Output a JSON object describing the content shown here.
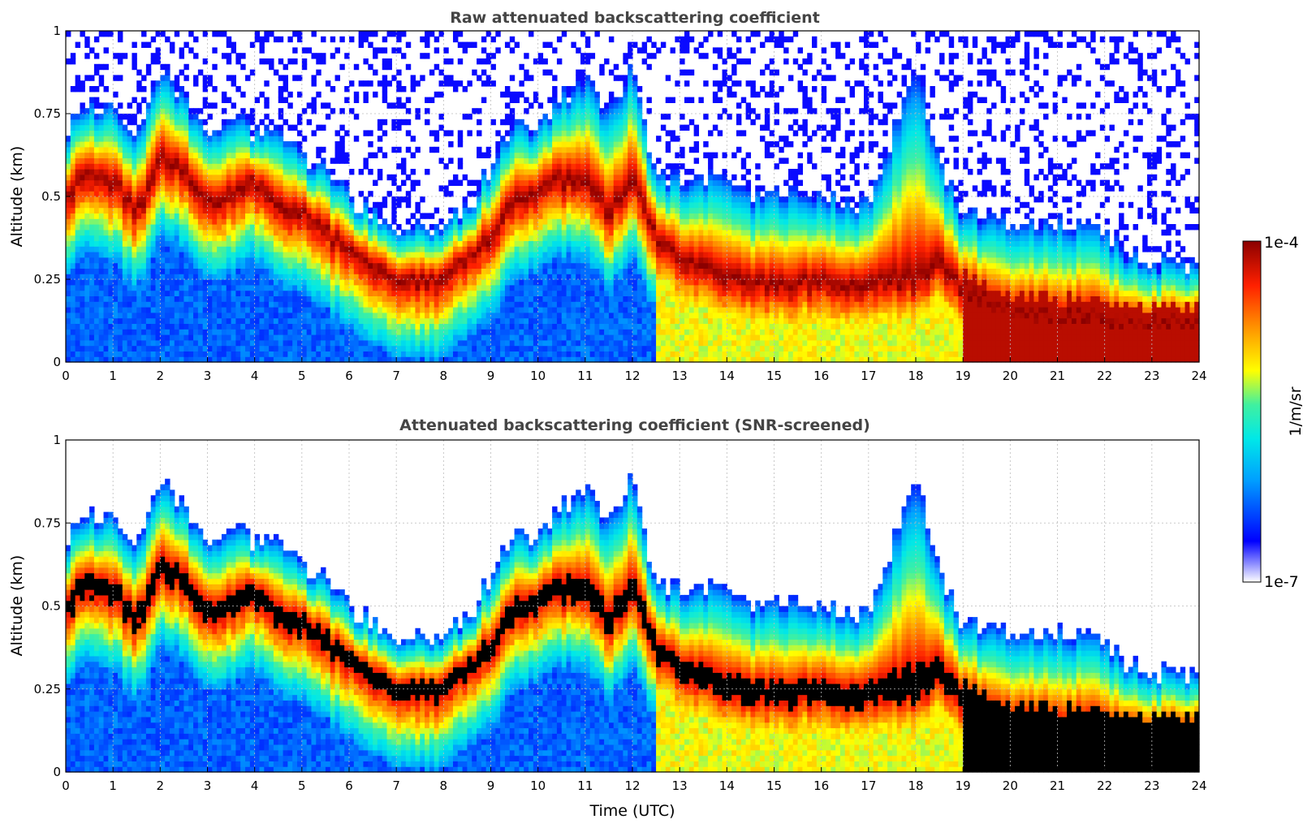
{
  "colormap": [
    "#ffffff",
    "#0000ff",
    "#00a0ff",
    "#00e8e8",
    "#40f0a0",
    "#ffff00",
    "#ff9000",
    "#ff2000",
    "#8b0000"
  ],
  "masked_color": "#000000",
  "chart_data": [
    {
      "type": "heatmap",
      "title": "Raw attenuated backscattering coefficient",
      "xlabel": "",
      "ylabel": "Altitude (km)",
      "xlim": [
        0,
        24
      ],
      "ylim": [
        0,
        1
      ],
      "xticks": [
        "0",
        "1",
        "2",
        "3",
        "4",
        "5",
        "6",
        "7",
        "8",
        "9",
        "10",
        "11",
        "12",
        "13",
        "14",
        "15",
        "16",
        "17",
        "18",
        "19",
        "20",
        "21",
        "22",
        "23",
        "24"
      ],
      "yticks": [
        "0",
        "0.25",
        "0.5",
        "0.75",
        "1"
      ],
      "grid": true,
      "layer_profile": {
        "x_hours": [
          0,
          0.5,
          1,
          1.5,
          2,
          2.5,
          3,
          3.5,
          4,
          4.5,
          5,
          5.5,
          6,
          6.5,
          7,
          7.5,
          8,
          8.5,
          9,
          9.5,
          10,
          10.5,
          11,
          11.5,
          12,
          12.5,
          13,
          13.5,
          14,
          14.5,
          15,
          16,
          17,
          18,
          18.5,
          19,
          20,
          21,
          22,
          22.5,
          23,
          24
        ],
        "layer_peak_km": [
          0.52,
          0.56,
          0.55,
          0.45,
          0.62,
          0.58,
          0.48,
          0.5,
          0.55,
          0.48,
          0.45,
          0.4,
          0.33,
          0.3,
          0.26,
          0.25,
          0.26,
          0.3,
          0.38,
          0.5,
          0.52,
          0.55,
          0.55,
          0.45,
          0.55,
          0.38,
          0.3,
          0.28,
          0.25,
          0.24,
          0.24,
          0.24,
          0.24,
          0.25,
          0.3,
          0.22,
          0.15,
          0.14,
          0.14,
          0.12,
          0.12,
          0.12
        ],
        "signal_top_km": [
          0.7,
          0.78,
          0.76,
          0.68,
          0.88,
          0.8,
          0.68,
          0.74,
          0.7,
          0.68,
          0.62,
          0.58,
          0.5,
          0.45,
          0.42,
          0.4,
          0.42,
          0.46,
          0.6,
          0.72,
          0.7,
          0.8,
          0.85,
          0.75,
          0.9,
          0.55,
          0.55,
          0.55,
          0.55,
          0.5,
          0.5,
          0.5,
          0.48,
          0.9,
          0.6,
          0.45,
          0.42,
          0.42,
          0.4,
          0.32,
          0.3,
          0.3
        ]
      }
    },
    {
      "type": "heatmap",
      "title": "Attenuated backscattering coefficient (SNR-screened)",
      "xlabel": "Time (UTC)",
      "ylabel": "Altitude (km)",
      "xlim": [
        0,
        24
      ],
      "ylim": [
        0,
        1
      ],
      "xticks": [
        "0",
        "1",
        "2",
        "3",
        "4",
        "5",
        "6",
        "7",
        "8",
        "9",
        "10",
        "11",
        "12",
        "13",
        "14",
        "15",
        "16",
        "17",
        "18",
        "19",
        "20",
        "21",
        "22",
        "23",
        "24"
      ],
      "yticks": [
        "0",
        "0.25",
        "0.5",
        "0.75",
        "1"
      ],
      "grid": true
    }
  ],
  "colorbar": {
    "label": "1/m/sr",
    "max_label": "1e-4",
    "min_label": "1e-7",
    "range": [
      1e-07,
      0.0001
    ],
    "scale": "log"
  }
}
